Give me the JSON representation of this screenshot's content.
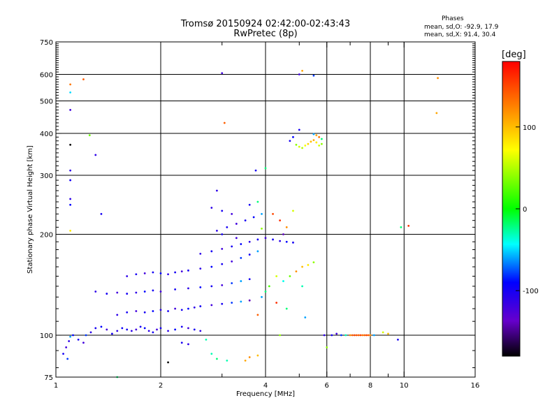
{
  "chart_data": {
    "type": "scatter",
    "title": "Tromsø 20150924 02:42:00-02:43:43",
    "subtitle": "RwPretec (8p)",
    "xlabel": "Frequency [MHz]",
    "ylabel": "Stationary phase Virtual Height [km]",
    "x_scale": "log",
    "y_scale": "log",
    "xlim": [
      1,
      16
    ],
    "ylim": [
      75,
      750
    ],
    "x_ticks": [
      1,
      2,
      4,
      6,
      8,
      10,
      16
    ],
    "x_minor_ticks": [
      3,
      5,
      7,
      9
    ],
    "y_ticks": [
      75,
      100,
      200,
      300,
      400,
      500,
      600,
      750
    ],
    "grid": true,
    "stats": {
      "heading": "Phases",
      "line_o": "mean, sd,O: -92.9, 17.9",
      "line_x": "mean, sd,X:  91.4, 30.4"
    },
    "colorbar": {
      "label": "[deg]",
      "range": [
        -180,
        180
      ],
      "ticks": [
        100,
        0,
        -100
      ],
      "colors": [
        "#ff0000",
        "#ff8000",
        "#ffff00",
        "#00ff00",
        "#00ffff",
        "#0000ff",
        "#6600cc",
        "#000000"
      ]
    },
    "point_color_default": "#1a1ae6",
    "points": [
      [
        1.05,
        88,
        -100
      ],
      [
        1.07,
        92,
        -120
      ],
      [
        1.09,
        96,
        -110
      ],
      [
        1.1,
        99,
        -60
      ],
      [
        1.12,
        100,
        -90
      ],
      [
        1.16,
        97,
        -100
      ],
      [
        1.2,
        95,
        -120
      ],
      [
        1.22,
        100,
        -80
      ],
      [
        1.26,
        102,
        -110
      ],
      [
        1.3,
        105,
        -100
      ],
      [
        1.35,
        106,
        -90
      ],
      [
        1.4,
        104,
        -120
      ],
      [
        1.45,
        101,
        -100
      ],
      [
        1.5,
        103,
        -110
      ],
      [
        1.55,
        105,
        -95
      ],
      [
        1.6,
        104,
        -100
      ],
      [
        1.65,
        103,
        -110
      ],
      [
        1.7,
        104,
        -120
      ],
      [
        1.75,
        106,
        -100
      ],
      [
        1.8,
        105,
        -90
      ],
      [
        1.85,
        103,
        -110
      ],
      [
        1.9,
        102,
        -100
      ],
      [
        1.95,
        104,
        -120
      ],
      [
        2.0,
        105,
        -100
      ],
      [
        2.1,
        103,
        -110
      ],
      [
        2.2,
        104,
        -90
      ],
      [
        2.3,
        106,
        -100
      ],
      [
        2.4,
        105,
        -120
      ],
      [
        2.5,
        104,
        -100
      ],
      [
        2.6,
        103,
        -110
      ],
      [
        2.7,
        97,
        -30
      ],
      [
        2.8,
        88,
        -30
      ],
      [
        1.5,
        115,
        -110
      ],
      [
        1.6,
        117,
        -100
      ],
      [
        1.7,
        118,
        -120
      ],
      [
        1.8,
        117,
        -100
      ],
      [
        1.9,
        118,
        -90
      ],
      [
        2.0,
        119,
        -110
      ],
      [
        2.1,
        118,
        -100
      ],
      [
        2.2,
        120,
        -120
      ],
      [
        2.3,
        119,
        -100
      ],
      [
        2.4,
        120,
        -90
      ],
      [
        2.5,
        121,
        -110
      ],
      [
        2.6,
        122,
        -100
      ],
      [
        2.8,
        123,
        -120
      ],
      [
        3.0,
        124,
        -100
      ],
      [
        3.2,
        125,
        -80
      ],
      [
        3.4,
        126,
        -60
      ],
      [
        3.6,
        127,
        -140
      ],
      [
        1.3,
        135,
        -110
      ],
      [
        1.4,
        133,
        -100
      ],
      [
        1.5,
        134,
        -120
      ],
      [
        1.6,
        133,
        -100
      ],
      [
        1.7,
        134,
        -110
      ],
      [
        1.8,
        135,
        -90
      ],
      [
        1.9,
        136,
        -100
      ],
      [
        2.0,
        135,
        -120
      ],
      [
        2.2,
        137,
        -100
      ],
      [
        2.4,
        138,
        -110
      ],
      [
        2.6,
        139,
        -90
      ],
      [
        2.8,
        140,
        -100
      ],
      [
        3.0,
        141,
        -120
      ],
      [
        3.2,
        143,
        -80
      ],
      [
        3.4,
        145,
        -60
      ],
      [
        3.6,
        147,
        -100
      ],
      [
        1.6,
        150,
        -110
      ],
      [
        1.7,
        152,
        -100
      ],
      [
        1.8,
        153,
        -120
      ],
      [
        1.9,
        154,
        -100
      ],
      [
        2.0,
        153,
        -90
      ],
      [
        2.1,
        152,
        -110
      ],
      [
        2.2,
        154,
        -100
      ],
      [
        2.3,
        155,
        -120
      ],
      [
        2.4,
        156,
        -100
      ],
      [
        2.6,
        158,
        -110
      ],
      [
        2.8,
        160,
        -90
      ],
      [
        3.0,
        163,
        -100
      ],
      [
        3.2,
        166,
        -120
      ],
      [
        3.4,
        170,
        -80
      ],
      [
        3.6,
        174,
        -100
      ],
      [
        3.8,
        178,
        -60
      ],
      [
        2.6,
        175,
        -110
      ],
      [
        2.8,
        178,
        -100
      ],
      [
        3.0,
        181,
        -120
      ],
      [
        3.2,
        184,
        -100
      ],
      [
        3.4,
        187,
        -90
      ],
      [
        3.6,
        190,
        -110
      ],
      [
        3.8,
        193,
        -100
      ],
      [
        4.0,
        195,
        -120
      ],
      [
        4.2,
        193,
        -100
      ],
      [
        4.4,
        191,
        -110
      ],
      [
        4.6,
        190,
        -90
      ],
      [
        4.8,
        189,
        -100
      ],
      [
        2.9,
        205,
        -110
      ],
      [
        3.1,
        210,
        -100
      ],
      [
        3.3,
        215,
        -120
      ],
      [
        3.5,
        220,
        -100
      ],
      [
        3.7,
        225,
        -90
      ],
      [
        3.9,
        230,
        -60
      ],
      [
        2.8,
        240,
        -110
      ],
      [
        3.0,
        235,
        -100
      ],
      [
        3.2,
        230,
        -120
      ],
      [
        3.6,
        245,
        -100
      ],
      [
        3.8,
        250,
        -20
      ],
      [
        2.9,
        270,
        -110
      ],
      [
        3.0,
        200,
        -100
      ],
      [
        3.3,
        195,
        -120
      ],
      [
        3.9,
        130,
        -60
      ],
      [
        4.0,
        135,
        -20
      ],
      [
        4.1,
        140,
        20
      ],
      [
        4.3,
        150,
        60
      ],
      [
        4.5,
        145,
        -40
      ],
      [
        4.7,
        150,
        30
      ],
      [
        4.9,
        155,
        120
      ],
      [
        5.1,
        160,
        100
      ],
      [
        5.3,
        162,
        80
      ],
      [
        5.5,
        165,
        40
      ],
      [
        5.1,
        140,
        -30
      ],
      [
        4.6,
        120,
        -20
      ],
      [
        5.2,
        113,
        -60
      ],
      [
        4.4,
        100,
        40
      ],
      [
        3.8,
        115,
        140
      ],
      [
        4.3,
        125,
        160
      ],
      [
        4.2,
        230,
        150
      ],
      [
        4.4,
        220,
        160
      ],
      [
        4.6,
        210,
        120
      ],
      [
        4.8,
        235,
        60
      ],
      [
        3.9,
        208,
        40
      ],
      [
        4.5,
        200,
        -140
      ],
      [
        4.9,
        370,
        40
      ],
      [
        5.0,
        365,
        60
      ],
      [
        5.1,
        362,
        50
      ],
      [
        5.2,
        368,
        70
      ],
      [
        5.3,
        372,
        90
      ],
      [
        5.4,
        378,
        100
      ],
      [
        5.5,
        382,
        110
      ],
      [
        5.6,
        376,
        80
      ],
      [
        5.7,
        368,
        60
      ],
      [
        5.8,
        372,
        40
      ],
      [
        4.7,
        380,
        -100
      ],
      [
        4.8,
        390,
        -90
      ],
      [
        5.6,
        395,
        110
      ],
      [
        5.7,
        390,
        130
      ],
      [
        5.8,
        385,
        -20
      ],
      [
        5.5,
        398,
        -60
      ],
      [
        5.0,
        410,
        -100
      ],
      [
        5.9,
        100,
        -110
      ],
      [
        6.2,
        100,
        -100
      ],
      [
        6.4,
        101,
        -120
      ],
      [
        6.6,
        100,
        -80
      ],
      [
        6.8,
        100,
        -30
      ],
      [
        7.0,
        100,
        120
      ],
      [
        7.1,
        100,
        140
      ],
      [
        7.2,
        100,
        150
      ],
      [
        7.3,
        100,
        145
      ],
      [
        7.4,
        100,
        140
      ],
      [
        7.5,
        100,
        150
      ],
      [
        7.6,
        100,
        130
      ],
      [
        7.7,
        100,
        140
      ],
      [
        7.8,
        100,
        150
      ],
      [
        7.9,
        100,
        140
      ],
      [
        8.0,
        100,
        120
      ],
      [
        8.2,
        100,
        -60
      ],
      [
        8.7,
        102,
        60
      ],
      [
        9.0,
        101,
        100
      ],
      [
        9.6,
        97,
        -100
      ],
      [
        1.1,
        560,
        130
      ],
      [
        1.1,
        530,
        -50
      ],
      [
        1.1,
        470,
        -120
      ],
      [
        1.1,
        370,
        -180
      ],
      [
        1.1,
        310,
        -110
      ],
      [
        1.1,
        290,
        -100
      ],
      [
        1.1,
        255,
        -110
      ],
      [
        1.1,
        245,
        -90
      ],
      [
        1.2,
        580,
        140
      ],
      [
        1.25,
        395,
        30
      ],
      [
        1.3,
        345,
        -110
      ],
      [
        1.35,
        230,
        -100
      ],
      [
        1.1,
        205,
        80
      ],
      [
        3.0,
        605,
        -120
      ],
      [
        3.05,
        430,
        140
      ],
      [
        5.1,
        615,
        110
      ],
      [
        5.5,
        595,
        -80
      ],
      [
        5.0,
        600,
        -120
      ],
      [
        4.0,
        315,
        -20
      ],
      [
        3.75,
        310,
        -100
      ],
      [
        9.8,
        210,
        -20
      ],
      [
        10.3,
        212,
        160
      ],
      [
        12.5,
        585,
        120
      ],
      [
        12.4,
        460,
        110
      ],
      [
        2.3,
        95,
        -100
      ],
      [
        2.4,
        94,
        -110
      ],
      [
        2.9,
        85,
        -20
      ],
      [
        3.1,
        84,
        -30
      ],
      [
        3.5,
        84,
        110
      ],
      [
        3.6,
        86,
        120
      ],
      [
        3.8,
        87,
        100
      ],
      [
        2.1,
        83,
        -180
      ],
      [
        6.0,
        92,
        40
      ],
      [
        1.5,
        75,
        -20
      ],
      [
        1.08,
        85,
        -80
      ]
    ]
  }
}
